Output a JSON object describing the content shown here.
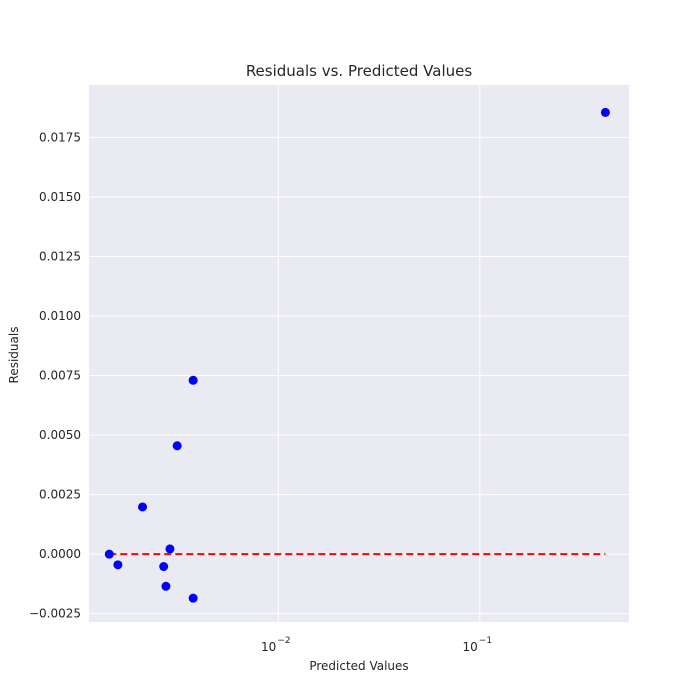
{
  "chart_data": {
    "type": "scatter",
    "title": "Residuals vs. Predicted Values",
    "xlabel": "Predicted Values",
    "ylabel": "Residuals",
    "xscale": "log",
    "xlim": [
      0.00115,
      0.55
    ],
    "ylim": [
      -0.00285,
      0.0197
    ],
    "grid": true,
    "background_color": "#EAEAF2",
    "point_color": "#0000FF",
    "reference_line": {
      "y": 0,
      "color": "#FF0000",
      "style": "dashed",
      "x_range": [
        0.00145,
        0.42
      ]
    },
    "x_ticks": [
      {
        "value": 0.01,
        "base": "10",
        "exp": "−2"
      },
      {
        "value": 0.1,
        "base": "10",
        "exp": "−1"
      }
    ],
    "y_ticks": [
      {
        "value": -0.0025,
        "label": "−0.0025"
      },
      {
        "value": 0.0,
        "label": "0.0000"
      },
      {
        "value": 0.0025,
        "label": "0.0025"
      },
      {
        "value": 0.005,
        "label": "0.0050"
      },
      {
        "value": 0.0075,
        "label": "0.0075"
      },
      {
        "value": 0.01,
        "label": "0.0100"
      },
      {
        "value": 0.0125,
        "label": "0.0125"
      },
      {
        "value": 0.015,
        "label": "0.0150"
      },
      {
        "value": 0.0175,
        "label": "0.0175"
      }
    ],
    "series": [
      {
        "points": [
          {
            "x": 0.00145,
            "y": 0.0
          },
          {
            "x": 0.0016,
            "y": -0.00045
          },
          {
            "x": 0.00212,
            "y": 0.00198
          },
          {
            "x": 0.0027,
            "y": -0.00052
          },
          {
            "x": 0.00277,
            "y": -0.00135
          },
          {
            "x": 0.0029,
            "y": 0.00022
          },
          {
            "x": 0.00315,
            "y": 0.00455
          },
          {
            "x": 0.00378,
            "y": 0.0073
          },
          {
            "x": 0.00378,
            "y": -0.00185
          },
          {
            "x": 0.42,
            "y": 0.01855
          }
        ]
      }
    ]
  }
}
